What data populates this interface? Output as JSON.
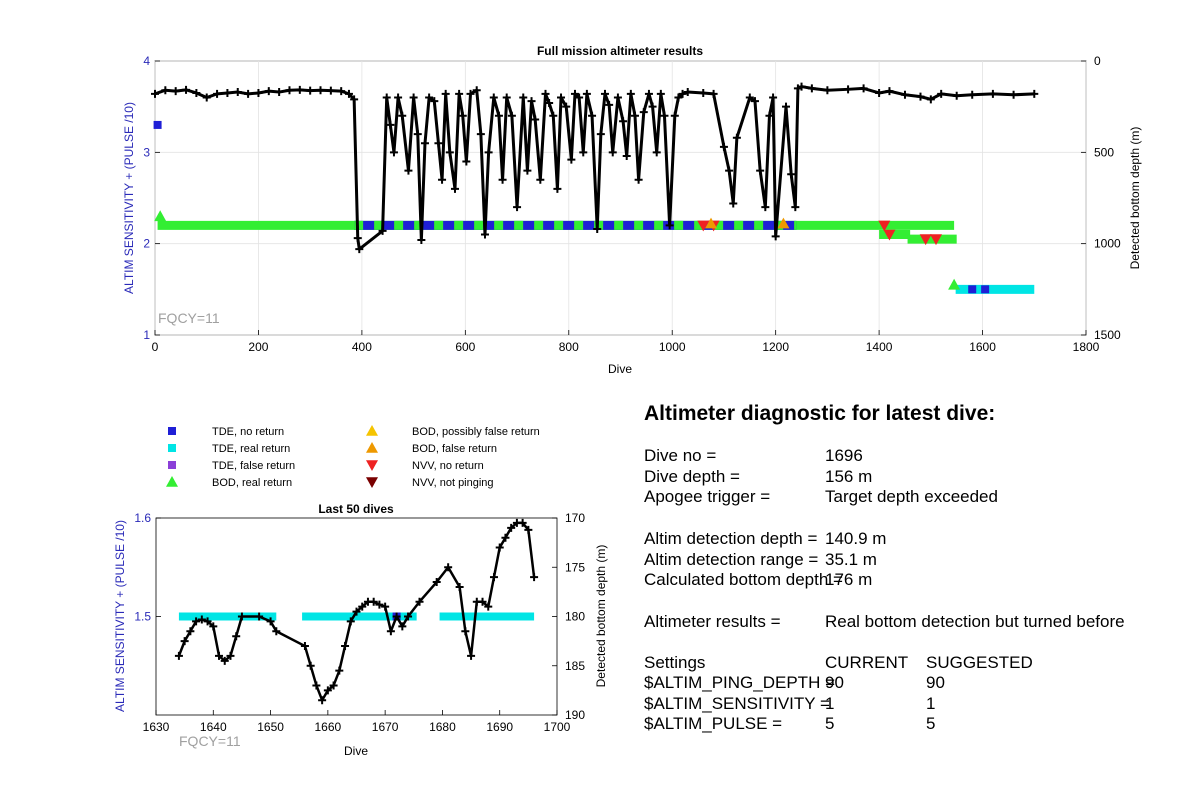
{
  "chart_data": [
    {
      "type": "scatter",
      "title": "Full mission altimeter results",
      "xlabel": "Dive",
      "ylabel_left": "ALTIM SENSITIVITY + (PULSE /10)",
      "ylabel_right": "Detected bottom depth (m)",
      "annotation": "FQCY=11",
      "xlim": [
        0,
        1800
      ],
      "ylim_left": [
        1,
        4
      ],
      "ylim_right": [
        1500,
        0
      ],
      "xticks": [
        "0",
        "200",
        "400",
        "600",
        "800",
        "1000",
        "1200",
        "1400",
        "1600",
        "1800"
      ],
      "yticks_left": [
        "1",
        "2",
        "3",
        "4"
      ],
      "yticks_right": [
        "0",
        "500",
        "1000",
        "1500"
      ],
      "grid": true,
      "depth_series": {
        "name": "Detected bottom depth",
        "color": "#000000",
        "x": [
          0,
          20,
          40,
          60,
          80,
          100,
          120,
          140,
          160,
          180,
          200,
          220,
          240,
          260,
          280,
          300,
          320,
          340,
          360,
          375,
          385,
          392,
          395,
          440,
          448,
          455,
          462,
          470,
          478,
          490,
          500,
          508,
          515,
          522,
          530,
          540,
          548,
          555,
          562,
          570,
          580,
          588,
          595,
          602,
          610,
          622,
          630,
          638,
          645,
          655,
          665,
          672,
          680,
          690,
          700,
          712,
          720,
          728,
          735,
          745,
          755,
          762,
          770,
          778,
          785,
          795,
          805,
          812,
          820,
          828,
          835,
          845,
          855,
          862,
          870,
          878,
          885,
          895,
          905,
          912,
          920,
          928,
          935,
          945,
          955,
          962,
          970,
          978,
          985,
          995,
          1005,
          1012,
          1020,
          1030,
          1060,
          1080,
          1100,
          1110,
          1118,
          1125,
          1150,
          1160,
          1170,
          1180,
          1188,
          1195,
          1200,
          1220,
          1230,
          1238,
          1243,
          1250,
          1270,
          1300,
          1340,
          1370,
          1400,
          1420,
          1450,
          1480,
          1500,
          1520,
          1550,
          1580,
          1620,
          1660,
          1700
        ],
        "y": [
          180,
          160,
          165,
          158,
          175,
          200,
          180,
          175,
          170,
          180,
          175,
          165,
          170,
          160,
          158,
          162,
          160,
          162,
          165,
          180,
          210,
          970,
          1030,
          930,
          200,
          350,
          500,
          200,
          300,
          600,
          200,
          400,
          980,
          450,
          200,
          220,
          450,
          650,
          180,
          500,
          700,
          180,
          300,
          550,
          180,
          160,
          400,
          950,
          500,
          200,
          300,
          650,
          200,
          300,
          800,
          200,
          600,
          220,
          320,
          650,
          180,
          230,
          300,
          700,
          200,
          250,
          540,
          180,
          200,
          500,
          180,
          300,
          920,
          400,
          180,
          240,
          500,
          200,
          330,
          520,
          180,
          300,
          650,
          280,
          180,
          250,
          500,
          180,
          300,
          900,
          300,
          200,
          180,
          170,
          175,
          180,
          470,
          600,
          780,
          420,
          200,
          220,
          600,
          800,
          300,
          200,
          960,
          250,
          620,
          800,
          150,
          140,
          150,
          160,
          155,
          150,
          175,
          165,
          185,
          195,
          210,
          180,
          190,
          185,
          180,
          185,
          180
        ]
      },
      "bod_real_return": {
        "name": "BOD, real return",
        "color": "#33ee33",
        "segments": [
          {
            "x_start": 5,
            "x_end": 1545,
            "y": 2.2
          },
          {
            "x_start": 1400,
            "x_end": 1460,
            "y": 2.1
          },
          {
            "x_start": 1455,
            "x_end": 1550,
            "y": 2.05
          }
        ],
        "points": [
          {
            "x": 10,
            "y": 2.3
          },
          {
            "x": 1545,
            "y": 1.55
          }
        ]
      },
      "tde_no_return": {
        "name": "TDE, no return",
        "color": "#1f1fd6",
        "segments": [
          {
            "x_start": 385,
            "x_end": 1240,
            "y": 2.2
          }
        ],
        "points": [
          {
            "x": 5,
            "y": 3.3
          },
          {
            "x": 1580,
            "y": 1.5
          },
          {
            "x": 1605,
            "y": 1.5
          }
        ]
      },
      "tde_real_return": {
        "name": "TDE, real return",
        "color": "#00e5e5",
        "segments": [
          {
            "x_start": 1548,
            "x_end": 1700,
            "y": 1.5
          }
        ]
      },
      "nvv_no_return": {
        "name": "NVV, no return",
        "color": "#ee2222",
        "points": [
          {
            "x": 1060,
            "y": 2.2
          },
          {
            "x": 1080,
            "y": 2.2
          },
          {
            "x": 1410,
            "y": 2.2
          },
          {
            "x": 1420,
            "y": 2.1
          },
          {
            "x": 1490,
            "y": 2.05
          },
          {
            "x": 1510,
            "y": 2.05
          }
        ]
      },
      "bod_false_return": {
        "name": "BOD, false return",
        "color": "#ee9900",
        "points": [
          {
            "x": 1075,
            "y": 2.22
          },
          {
            "x": 1215,
            "y": 2.22
          }
        ]
      }
    },
    {
      "type": "scatter",
      "title": "Last 50 dives",
      "xlabel": "Dive",
      "ylabel_left": "ALTIM SENSITIVITY + (PULSE /10)",
      "ylabel_right": "Detected bottom depth (m)",
      "annotation": "FQCY=11",
      "xlim": [
        1630,
        1700
      ],
      "ylim_left": [
        1.4,
        1.6
      ],
      "ylim_right": [
        190,
        170
      ],
      "xticks": [
        "1630",
        "1640",
        "1650",
        "1660",
        "1670",
        "1680",
        "1690",
        "1700"
      ],
      "yticks_left": [
        "1.5",
        "1.6"
      ],
      "yticks_right": [
        "170",
        "175",
        "180",
        "185",
        "190"
      ],
      "grid": false,
      "depth_series": {
        "name": "Detected bottom depth",
        "color": "#000000",
        "x": [
          1634,
          1635,
          1636,
          1637,
          1638,
          1639,
          1640,
          1641,
          1642,
          1643,
          1644,
          1645,
          1648,
          1650,
          1651,
          1656,
          1657,
          1658,
          1659,
          1660,
          1661,
          1662,
          1663,
          1664,
          1665,
          1666,
          1667,
          1668,
          1669,
          1670,
          1671,
          1672,
          1673,
          1674,
          1676,
          1679,
          1681,
          1683,
          1684,
          1685,
          1686,
          1687,
          1688,
          1689,
          1690,
          1691,
          1692,
          1693,
          1694,
          1695,
          1696
        ],
        "y": [
          184,
          182.5,
          181.5,
          180.5,
          180.3,
          180.5,
          181,
          184,
          184.5,
          184,
          182,
          180,
          180,
          180.5,
          181.5,
          183,
          185,
          187,
          188.5,
          187.5,
          187,
          185.5,
          183,
          180.5,
          179.5,
          179,
          178.5,
          178.5,
          178.8,
          179,
          181.5,
          180,
          181,
          180,
          178.5,
          176.5,
          175,
          177,
          181.5,
          184,
          178.5,
          178.5,
          179,
          176,
          173,
          172,
          171,
          170.5,
          170.5,
          171.2,
          176
        ]
      },
      "tde_real_return": {
        "name": "TDE, real return",
        "color": "#00e5e5",
        "segments": [
          {
            "x_start": 1634,
            "x_end": 1651,
            "y": 1.5
          },
          {
            "x_start": 1655.5,
            "x_end": 1675.5,
            "y": 1.5
          },
          {
            "x_start": 1679.5,
            "x_end": 1696,
            "y": 1.5
          }
        ]
      },
      "tde_no_return": {
        "name": "TDE, no return",
        "color": "#1f1fd6",
        "points": [
          {
            "x": 1672,
            "y": 1.5
          }
        ]
      }
    }
  ],
  "legend": {
    "items": [
      {
        "label": "TDE, no return",
        "color": "#1f1fd6",
        "marker": "square"
      },
      {
        "label": "TDE, real return",
        "color": "#00e5e5",
        "marker": "square"
      },
      {
        "label": "TDE, false return",
        "color": "#8b3fd8",
        "marker": "square"
      },
      {
        "label": "BOD, real return",
        "color": "#33ee33",
        "marker": "triangle-up"
      },
      {
        "label": "BOD, possibly false return",
        "color": "#f5c400",
        "marker": "triangle-up"
      },
      {
        "label": "BOD, false return",
        "color": "#ee9900",
        "marker": "triangle-up"
      },
      {
        "label": "NVV, no return",
        "color": "#ee2222",
        "marker": "triangle-down"
      },
      {
        "label": "NVV, not pinging",
        "color": "#7a0000",
        "marker": "triangle-down"
      }
    ]
  },
  "diagnostic": {
    "title": "Altimeter diagnostic for latest dive:",
    "dive_no_label": "Dive no =",
    "dive_no_value": "1696",
    "dive_depth_label": "Dive depth =",
    "dive_depth_value": "156 m",
    "apogee_label": "Apogee trigger =",
    "apogee_value": "Target depth exceeded",
    "detect_depth_label": "Altim detection depth =",
    "detect_depth_value": "140.9 m",
    "detect_range_label": "Altim detection range =",
    "detect_range_value": "35.1 m",
    "calc_bottom_label": "Calculated bottom depth =",
    "calc_bottom_value": "176 m",
    "results_label": "Altimeter results =",
    "results_value": "Real bottom detection but turned before",
    "settings_header": "Settings",
    "current_header": "CURRENT",
    "suggested_header": "SUGGESTED",
    "settings": [
      {
        "name": "$ALTIM_PING_DEPTH =",
        "current": "90",
        "suggested": "90"
      },
      {
        "name": "$ALTIM_SENSITIVITY =",
        "current": "1",
        "suggested": "1"
      },
      {
        "name": "$ALTIM_PULSE =",
        "current": "5",
        "suggested": "5"
      }
    ]
  }
}
